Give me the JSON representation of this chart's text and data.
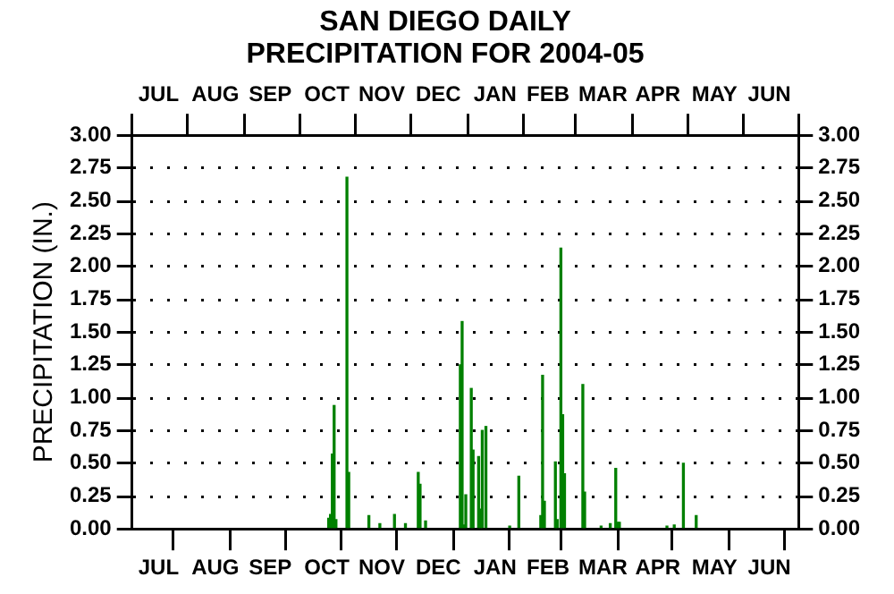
{
  "chart_data": {
    "type": "bar",
    "title": "SAN DIEGO DAILY\nPRECIPITATION FOR 2004-05",
    "ylabel": "PRECIPITATION (IN.)",
    "x": [
      "2004-10-17",
      "2004-10-18",
      "2004-10-19",
      "2004-10-20",
      "2004-10-21",
      "2004-10-26",
      "2004-10-27",
      "2004-10-28",
      "2004-11-08",
      "2004-11-14",
      "2004-11-22",
      "2004-11-28",
      "2004-12-05",
      "2004-12-06",
      "2004-12-09",
      "2004-12-28",
      "2004-12-29",
      "2004-12-30",
      "2004-12-31",
      "2005-01-03",
      "2005-01-04",
      "2005-01-07",
      "2005-01-08",
      "2005-01-09",
      "2005-01-11",
      "2005-01-24",
      "2005-01-29",
      "2005-02-10",
      "2005-02-11",
      "2005-02-12",
      "2005-02-18",
      "2005-02-19",
      "2005-02-21",
      "2005-02-22",
      "2005-02-23",
      "2005-03-05",
      "2005-03-06",
      "2005-03-15",
      "2005-03-20",
      "2005-03-23",
      "2005-03-24",
      "2005-03-25",
      "2005-04-20",
      "2005-04-24",
      "2005-04-29",
      "2005-05-06"
    ],
    "series": [
      {
        "color": "#008000",
        "values": [
          0.08,
          0.11,
          0.57,
          0.94,
          0.07,
          null,
          2.68,
          0.43,
          0.1,
          0.04,
          0.11,
          0.04,
          0.43,
          0.34,
          0.06,
          1.25,
          1.58,
          0.03,
          0.26,
          1.07,
          0.6,
          0.55,
          0.15,
          0.75,
          0.78,
          0.02,
          0.4,
          0.1,
          1.17,
          0.21,
          0.51,
          0.07,
          2.14,
          0.87,
          0.42,
          1.1,
          0.28,
          0.02,
          0.04,
          0.46,
          0.05,
          0.05,
          0.02,
          0.03,
          0.5,
          0.1
        ]
      }
    ],
    "xlim": [
      "2004-07-01",
      "2005-07-01"
    ],
    "xticks": [
      {
        "value": "2004-07-01",
        "label": null
      },
      {
        "value": "2004-07-16",
        "label": "JUL"
      },
      {
        "value": "2004-08-01",
        "label": null
      },
      {
        "value": "2004-08-16",
        "label": "AUG"
      },
      {
        "value": "2004-09-01",
        "label": null
      },
      {
        "value": "2004-09-15",
        "label": "SEP"
      },
      {
        "value": "2004-10-01",
        "label": null
      },
      {
        "value": "2004-10-16",
        "label": "OCT"
      },
      {
        "value": "2004-11-01",
        "label": null
      },
      {
        "value": "2004-11-15",
        "label": "NOV"
      },
      {
        "value": "2004-12-01",
        "label": null
      },
      {
        "value": "2004-12-16",
        "label": "DEC"
      },
      {
        "value": "2005-01-01",
        "label": null
      },
      {
        "value": "2005-01-16",
        "label": "JAN"
      },
      {
        "value": "2005-02-01",
        "label": null
      },
      {
        "value": "2005-02-14",
        "label": "FEB"
      },
      {
        "value": "2005-03-01",
        "label": null
      },
      {
        "value": "2005-03-16",
        "label": "MAR"
      },
      {
        "value": "2005-04-01",
        "label": null
      },
      {
        "value": "2005-04-15",
        "label": "APR"
      },
      {
        "value": "2005-05-01",
        "label": null
      },
      {
        "value": "2005-05-16",
        "label": "MAY"
      },
      {
        "value": "2005-06-01",
        "label": null
      },
      {
        "value": "2005-06-15",
        "label": "JUN"
      },
      {
        "value": "2005-07-01",
        "label": null
      }
    ],
    "x2lim": [
      "2004-07-01",
      "2005-07-01"
    ],
    "x2ticks": [
      {
        "value": "2004-07-01",
        "label": null
      },
      {
        "value": "2004-07-16",
        "label": "JUL"
      },
      {
        "value": "2004-08-01",
        "label": null
      },
      {
        "value": "2004-08-16",
        "label": "AUG"
      },
      {
        "value": "2004-09-01",
        "label": null
      },
      {
        "value": "2004-09-15",
        "label": "SEP"
      },
      {
        "value": "2004-10-01",
        "label": null
      },
      {
        "value": "2004-10-16",
        "label": "OCT"
      },
      {
        "value": "2004-11-01",
        "label": null
      },
      {
        "value": "2004-11-15",
        "label": "NOV"
      },
      {
        "value": "2004-12-01",
        "label": null
      },
      {
        "value": "2004-12-16",
        "label": "DEC"
      },
      {
        "value": "2005-01-01",
        "label": null
      },
      {
        "value": "2005-01-16",
        "label": "JAN"
      },
      {
        "value": "2005-02-01",
        "label": null
      },
      {
        "value": "2005-02-14",
        "label": "FEB"
      },
      {
        "value": "2005-03-01",
        "label": null
      },
      {
        "value": "2005-03-16",
        "label": "MAR"
      },
      {
        "value": "2005-04-01",
        "label": null
      },
      {
        "value": "2005-04-15",
        "label": "APR"
      },
      {
        "value": "2005-05-01",
        "label": null
      },
      {
        "value": "2005-05-16",
        "label": "MAY"
      },
      {
        "value": "2005-06-01",
        "label": null
      },
      {
        "value": "2005-06-15",
        "label": "JUN"
      },
      {
        "value": "2005-07-01",
        "label": null
      }
    ],
    "ylim": [
      0,
      3
    ],
    "yticks": [
      {
        "value": 0,
        "label": "0.00"
      },
      {
        "value": 0.25,
        "label": "0.25"
      },
      {
        "value": 0.5,
        "label": "0.50"
      },
      {
        "value": 0.75,
        "label": "0.75"
      },
      {
        "value": 1,
        "label": "1.00"
      },
      {
        "value": 1.25,
        "label": "1.25"
      },
      {
        "value": 1.5,
        "label": "1.50"
      },
      {
        "value": 1.75,
        "label": "1.75"
      },
      {
        "value": 2,
        "label": "2.00"
      },
      {
        "value": 2.25,
        "label": "2.25"
      },
      {
        "value": 2.5,
        "label": "2.50"
      },
      {
        "value": 2.75,
        "label": "2.75"
      },
      {
        "value": 3,
        "label": "3.00"
      }
    ],
    "y2lim": [
      0,
      3
    ],
    "y2ticks": [
      {
        "value": 0,
        "label": "0.00"
      },
      {
        "value": 0.25,
        "label": "0.25"
      },
      {
        "value": 0.5,
        "label": "0.50"
      },
      {
        "value": 0.75,
        "label": "0.75"
      },
      {
        "value": 1,
        "label": "1.00"
      },
      {
        "value": 1.25,
        "label": "1.25"
      },
      {
        "value": 1.5,
        "label": "1.50"
      },
      {
        "value": 1.75,
        "label": "1.75"
      },
      {
        "value": 2,
        "label": "2.00"
      },
      {
        "value": 2.25,
        "label": "2.25"
      },
      {
        "value": 2.5,
        "label": "2.50"
      },
      {
        "value": 2.75,
        "label": "2.75"
      },
      {
        "value": 3,
        "label": "3.00"
      }
    ],
    "grid": "y",
    "legend": false
  }
}
